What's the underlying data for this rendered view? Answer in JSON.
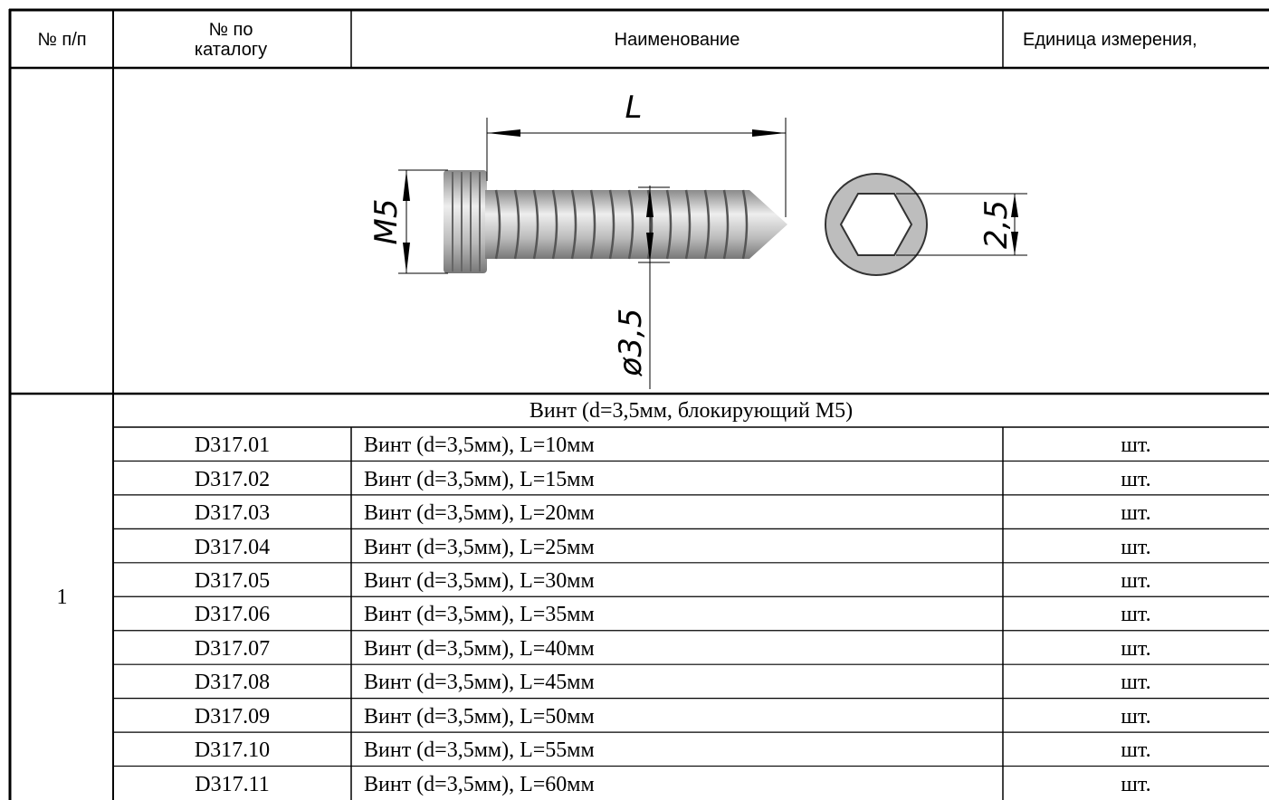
{
  "header": [
    "№ п/п",
    "№ по каталогу",
    "Наименование",
    "Единица измерения,"
  ],
  "drawing": {
    "length_label": "L",
    "thread_label": "M5",
    "diameter_label": "ø3,5",
    "hex_label": "2,5"
  },
  "table": {
    "number": "1",
    "group_title": "Винт (d=3,5мм, блокирующий М5)",
    "rows": [
      [
        "D317.01",
        "Винт (d=3,5мм), L=10мм",
        "шт."
      ],
      [
        "D317.02",
        "Винт (d=3,5мм), L=15мм",
        "шт."
      ],
      [
        "D317.03",
        "Винт (d=3,5мм), L=20мм",
        "шт."
      ],
      [
        "D317.04",
        "Винт (d=3,5мм), L=25мм",
        "шт."
      ],
      [
        "D317.05",
        "Винт (d=3,5мм), L=30мм",
        "шт."
      ],
      [
        "D317.06",
        "Винт (d=3,5мм), L=35мм",
        "шт."
      ],
      [
        "D317.07",
        "Винт (d=3,5мм), L=40мм",
        "шт."
      ],
      [
        "D317.08",
        "Винт (d=3,5мм), L=45мм",
        "шт."
      ],
      [
        "D317.09",
        "Винт (d=3,5мм), L=50мм",
        "шт."
      ],
      [
        "D317.10",
        "Винт (d=3,5мм), L=55мм",
        "шт."
      ],
      [
        "D317.11",
        "Винт (d=3,5мм), L=60мм",
        "шт."
      ]
    ]
  }
}
